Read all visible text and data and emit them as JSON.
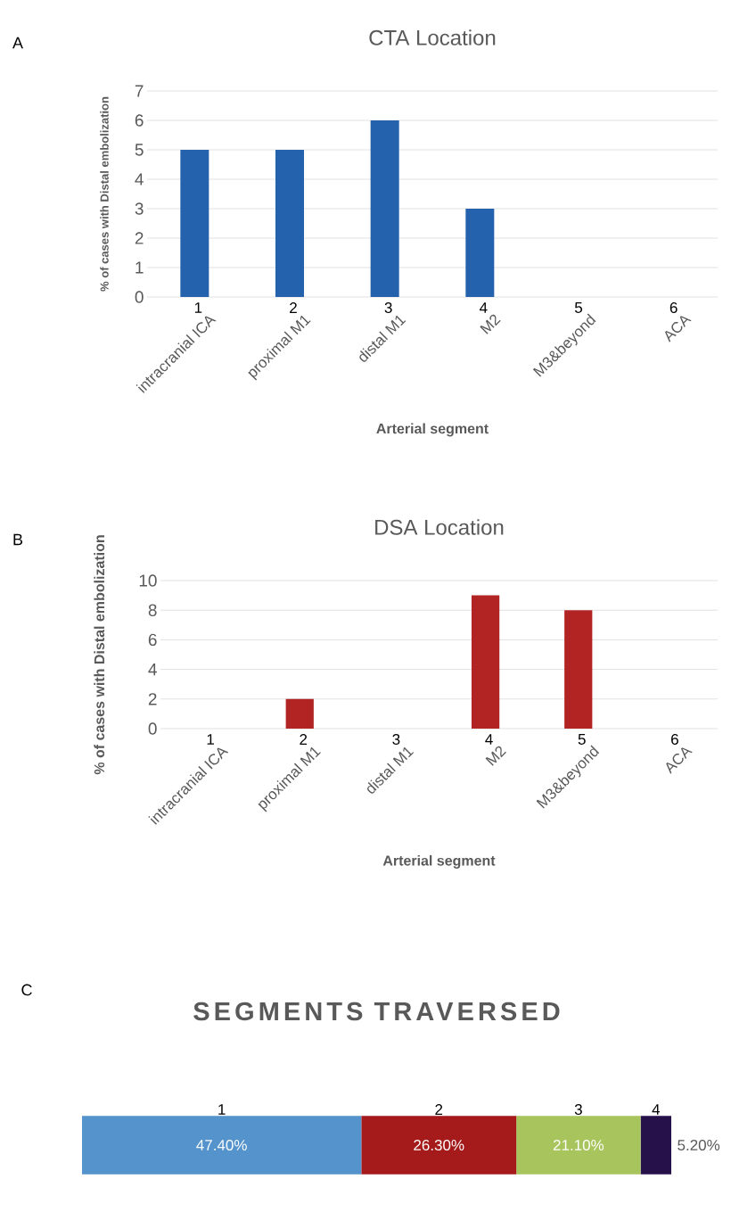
{
  "chart_data": [
    {
      "type": "bar",
      "title": "CTA Location",
      "xlabel": "Arterial segment",
      "ylabel": "% of cases with Distal embolization",
      "categories": [
        "intracranial ICA",
        "proximal M1",
        "distal M1",
        "M2",
        "M3&beyond",
        "ACA"
      ],
      "values": [
        5,
        5,
        6,
        3,
        0,
        0
      ],
      "color": "#2462ae",
      "ylim": [
        0,
        7
      ],
      "yticks": [
        0,
        1,
        2,
        3,
        4,
        5,
        6,
        7
      ],
      "grid": "y",
      "annotations": [
        "A",
        "1",
        "2",
        "3",
        "4",
        "5",
        "6"
      ]
    },
    {
      "type": "bar",
      "title": "DSA Location",
      "xlabel": "Arterial segment",
      "ylabel": "% of cases with Distal embolization",
      "categories": [
        "intracranial ICA",
        "proximal M1",
        "distal M1",
        "M2",
        "M3&beyond",
        "ACA"
      ],
      "values": [
        0,
        2,
        0,
        9,
        8,
        0
      ],
      "color": "#b22424",
      "ylim": [
        0,
        10
      ],
      "yticks": [
        0,
        2,
        4,
        6,
        8,
        10
      ],
      "grid": "y",
      "annotations": [
        "B",
        "1",
        "2",
        "3",
        "4",
        "5",
        "6"
      ]
    },
    {
      "type": "bar",
      "orientation": "horizontal",
      "stacked": true,
      "title": "SEGMENTS TRAVERSED",
      "categories": [
        null
      ],
      "series": [
        {
          "color": "#5593cc",
          "values": [
            47.4
          ],
          "value_labels": [
            "47.40%"
          ]
        },
        {
          "color": "#a51b1b",
          "values": [
            26.3
          ],
          "value_labels": [
            "26.30%"
          ]
        },
        {
          "color": "#a8c45c",
          "values": [
            21.1
          ],
          "value_labels": [
            "21.10%"
          ]
        },
        {
          "color": "#27114a",
          "values": [
            5.2
          ],
          "value_labels": [
            "5.20%"
          ]
        }
      ],
      "annotations": [
        "C",
        "1",
        "2",
        "3",
        "4"
      ]
    }
  ]
}
